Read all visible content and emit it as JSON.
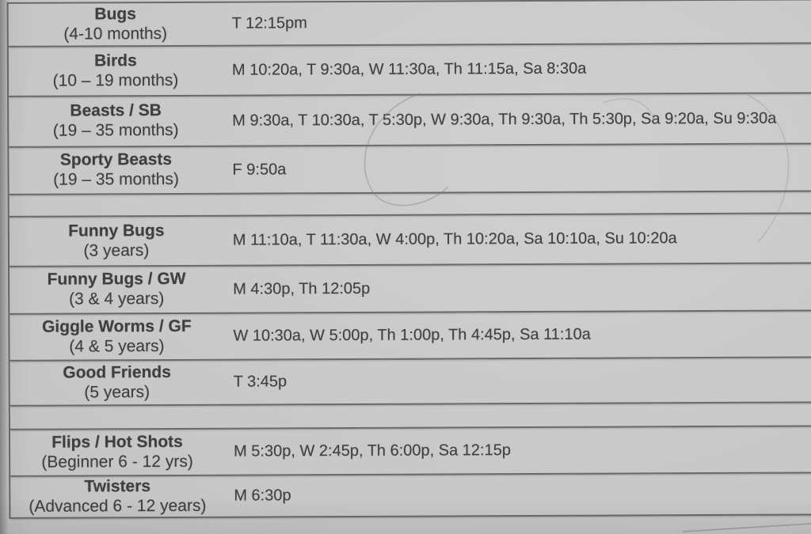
{
  "palette": {
    "paper": "#cbcbcb",
    "line": "#6c6c6c",
    "ink": "#414141",
    "edge_shadow": "#8f8f8f"
  },
  "schedule": {
    "rows": [
      {
        "kind": "class",
        "name": "Bugs",
        "ages": "(4-10 months)",
        "times": "T 12:15pm"
      },
      {
        "kind": "class",
        "name": "Birds",
        "ages": "(10 – 19 months)",
        "times": "M 10:20a, T 9:30a, W 11:30a, Th 11:15a, Sa 8:30a"
      },
      {
        "kind": "class",
        "name": "Beasts / SB",
        "ages": "(19 – 35 months)",
        "times": "M 9:30a, T 10:30a, T 5:30p, W 9:30a, Th 9:30a, Th 5:30p, Sa 9:20a, Su 9:30a"
      },
      {
        "kind": "class",
        "name": "Sporty Beasts",
        "ages": "(19 – 35 months)",
        "times": "F 9:50a"
      },
      {
        "kind": "spacer"
      },
      {
        "kind": "class",
        "name": "Funny Bugs",
        "ages": "(3 years)",
        "times": "M 11:10a, T 11:30a, W 4:00p, Th 10:20a, Sa 10:10a, Su 10:20a"
      },
      {
        "kind": "class",
        "name": "Funny Bugs / GW",
        "ages": "(3 & 4 years)",
        "times": "M 4:30p, Th 12:05p"
      },
      {
        "kind": "class",
        "name": "Giggle Worms / GF",
        "ages": "(4 & 5 years)",
        "times": "W 10:30a, W 5:00p, Th 1:00p, Th 4:45p, Sa 11:10a"
      },
      {
        "kind": "class",
        "name": "Good Friends",
        "ages": "(5 years)",
        "times": "T 3:45p"
      },
      {
        "kind": "spacer"
      },
      {
        "kind": "class",
        "name": "Flips / Hot Shots",
        "ages": "(Beginner 6 - 12 yrs)",
        "times": "M 5:30p, W 2:45p, Th 6:00p, Sa 12:15p"
      },
      {
        "kind": "class",
        "name": "Twisters",
        "ages": "(Advanced 6 - 12 years)",
        "times": "M 6:30p"
      }
    ]
  }
}
